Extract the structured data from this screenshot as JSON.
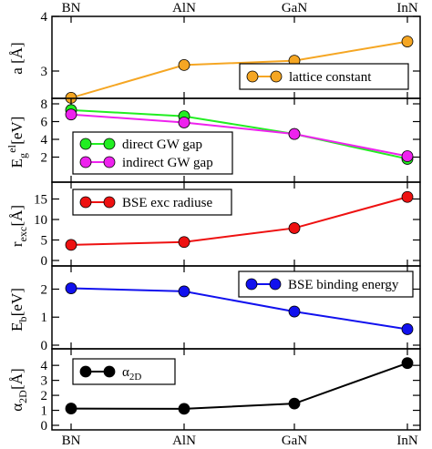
{
  "chart_data": {
    "type": "line",
    "categories": [
      "BN",
      "AlN",
      "GaN",
      "InN"
    ],
    "panels": [
      {
        "ylabel": "a [Å]",
        "ylim": [
          2.5,
          4
        ],
        "yticks": [
          3,
          4
        ],
        "color": "#f5a623",
        "series": [
          {
            "name": "lattice constant",
            "color": "#f5a623",
            "values": [
              2.51,
              3.11,
              3.19,
              3.54
            ]
          }
        ],
        "legend_position": "bottom-right"
      },
      {
        "ylabel": "Eg el [eV]",
        "ylim": [
          0,
          8
        ],
        "yticks": [
          2,
          4,
          6,
          8
        ],
        "series": [
          {
            "name": "direct GW gap",
            "color": "#22ee22",
            "values": [
              7.3,
              6.6,
              4.6,
              1.8
            ]
          },
          {
            "name": "indirect GW gap",
            "color": "#ee22ee",
            "values": [
              6.8,
              5.9,
              4.6,
              2.1
            ]
          }
        ],
        "legend_position": "bottom-left"
      },
      {
        "ylabel": "r exc [Å]",
        "ylim": [
          0,
          18
        ],
        "yticks": [
          0,
          5,
          10,
          15
        ],
        "series": [
          {
            "name": "BSE exc radiuse",
            "color": "#ee1111",
            "values": [
              3.8,
              4.5,
              7.9,
              15.5
            ]
          }
        ],
        "legend_position": "top-left"
      },
      {
        "ylabel": "Eb [eV]",
        "ylim": [
          0,
          2.6
        ],
        "yticks": [
          0,
          1,
          2
        ],
        "series": [
          {
            "name": "BSE binding energy",
            "color": "#1111ee",
            "values": [
              2.03,
              1.92,
              1.2,
              0.57
            ]
          }
        ],
        "legend_position": "top-right"
      },
      {
        "ylabel": "α2D [Å]",
        "ylim": [
          0,
          4.8
        ],
        "yticks": [
          0,
          1,
          2,
          3,
          4
        ],
        "series": [
          {
            "name": "α2D",
            "color": "#000000",
            "values": [
              1.12,
              1.1,
              1.45,
              4.15
            ]
          }
        ],
        "legend_position": "top-left"
      }
    ]
  }
}
